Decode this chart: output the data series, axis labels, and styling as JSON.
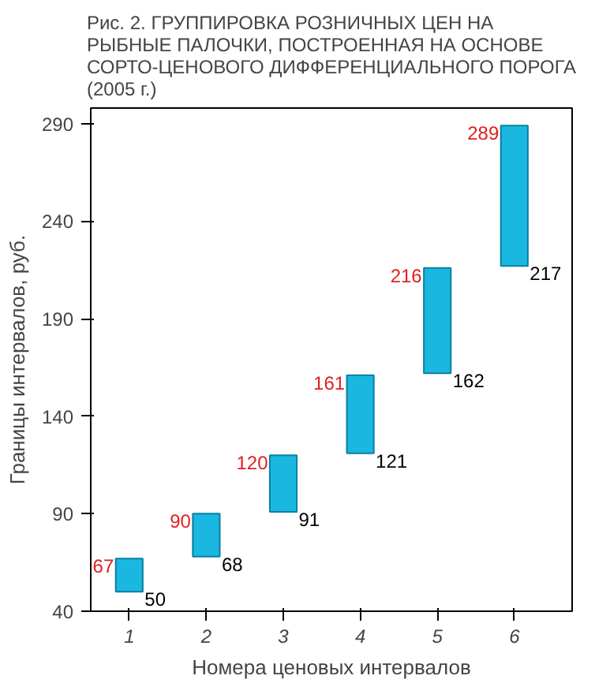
{
  "chart_data": {
    "type": "bar",
    "title": "Рис. 2. ГРУППИРОВКА РОЗНИЧНЫХ ЦЕН НА РЫБНЫЕ ПАЛОЧКИ, ПОСТРОЕННАЯ НА ОСНОВЕ СОРТО-ЦЕНОВОГО ДИФФЕРЕНЦИАЛЬНОГО ПОРОГА (2005 г.)",
    "xlabel": "Номера ценовых интервалов",
    "ylabel": "Границы интервалов, руб.",
    "categories": [
      "1",
      "2",
      "3",
      "4",
      "5",
      "6"
    ],
    "base": [
      50,
      68,
      91,
      121,
      162,
      217
    ],
    "values": [
      17,
      22,
      29,
      40,
      54,
      72
    ],
    "color": "#1ab8e0",
    "ylim": [
      40,
      298
    ],
    "yticks": [
      40,
      90,
      140,
      190,
      240,
      290
    ],
    "grid": false,
    "annotations": [
      {
        "text": "67",
        "x": "1",
        "y": 67
      },
      {
        "text": "50",
        "x": "1",
        "y": 50
      },
      {
        "text": "90",
        "x": "2",
        "y": 90
      },
      {
        "text": "68",
        "x": "2",
        "y": 68
      },
      {
        "text": "120",
        "x": "3",
        "y": 120
      },
      {
        "text": "91",
        "x": "3",
        "y": 91
      },
      {
        "text": "161",
        "x": "4",
        "y": 161
      },
      {
        "text": "121",
        "x": "4",
        "y": 121
      },
      {
        "text": "216",
        "x": "5",
        "y": 216
      },
      {
        "text": "162",
        "x": "5",
        "y": 162
      },
      {
        "text": "289",
        "x": "6",
        "y": 289
      },
      {
        "text": "217",
        "x": "6",
        "y": 217
      }
    ]
  }
}
